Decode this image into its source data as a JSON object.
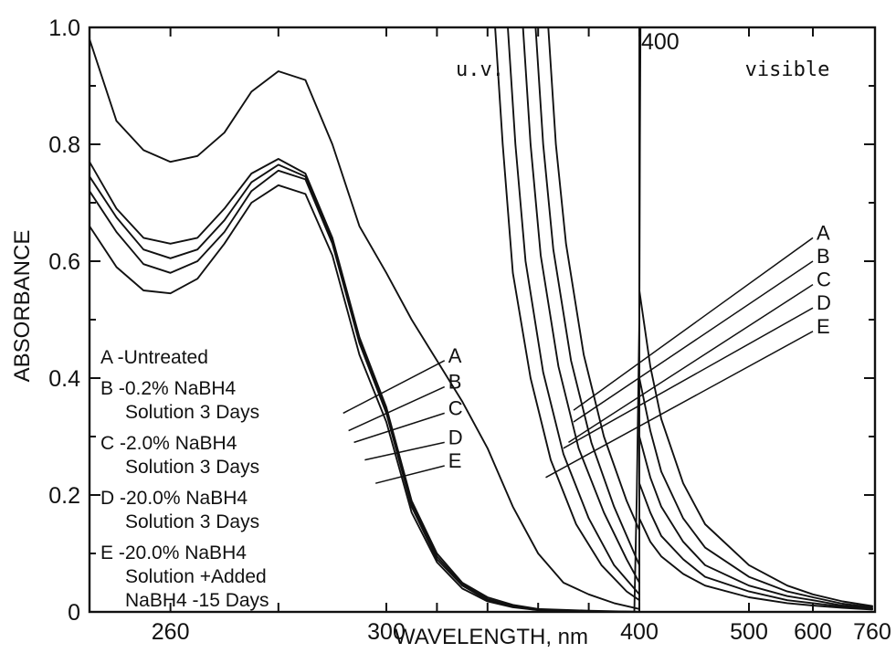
{
  "chart_data": {
    "type": "line",
    "title": "",
    "xlabel": "WAVELENGTH, nm",
    "ylabel": "ABSORBANCE",
    "ylim": [
      0,
      1.0
    ],
    "x_axis_note": "segmented wavelength axis: 245-400 nm (u.v.) then compressed 400-760 nm (visible)",
    "x_segments": [
      {
        "from": 245,
        "to": 300
      },
      {
        "from": 300,
        "to": 400
      },
      {
        "from": 400,
        "to": 500
      },
      {
        "from": 500,
        "to": 600
      },
      {
        "from": 600,
        "to": 760
      }
    ],
    "y_ticks": [
      {
        "value": 0,
        "label": "0"
      },
      {
        "value": 0.2,
        "label": "0.2"
      },
      {
        "value": 0.4,
        "label": "0.4"
      },
      {
        "value": 0.6,
        "label": "0.6"
      },
      {
        "value": 0.8,
        "label": "0.8"
      },
      {
        "value": 1.0,
        "label": "1.0"
      }
    ],
    "x_tick_labels": [
      {
        "value": 260,
        "label": "260"
      },
      {
        "value": 300,
        "label": "300"
      },
      {
        "value": 400,
        "label": "400"
      },
      {
        "value": 500,
        "label": "500"
      },
      {
        "value": 600,
        "label": "600"
      },
      {
        "value": 760,
        "label": "760"
      }
    ],
    "regions": [
      {
        "label": "u.v.",
        "x": 337,
        "y": 0.93
      },
      {
        "label": "visible",
        "x": 560,
        "y": 0.93
      }
    ],
    "split_marker": {
      "label": "400",
      "x": 400
    },
    "series": [
      {
        "name": "A",
        "uv": [
          [
            245,
            0.98
          ],
          [
            250,
            0.84
          ],
          [
            255,
            0.79
          ],
          [
            260,
            0.77
          ],
          [
            265,
            0.78
          ],
          [
            270,
            0.82
          ],
          [
            275,
            0.89
          ],
          [
            280,
            0.925
          ],
          [
            285,
            0.91
          ],
          [
            290,
            0.8
          ],
          [
            295,
            0.66
          ],
          [
            300,
            0.58
          ],
          [
            310,
            0.5
          ],
          [
            320,
            0.43
          ],
          [
            330,
            0.36
          ],
          [
            340,
            0.28
          ],
          [
            350,
            0.18
          ],
          [
            360,
            0.1
          ],
          [
            370,
            0.05
          ],
          [
            380,
            0.03
          ],
          [
            390,
            0.015
          ],
          [
            400,
            0.005
          ]
        ],
        "uv_steep": [
          [
            343,
            1.0
          ],
          [
            346,
            0.8
          ],
          [
            350,
            0.58
          ],
          [
            357,
            0.4
          ],
          [
            365,
            0.26
          ],
          [
            375,
            0.15
          ],
          [
            385,
            0.08
          ],
          [
            395,
            0.035
          ],
          [
            400,
            0.02
          ]
        ],
        "vis": [
          [
            400,
            0.55
          ],
          [
            410,
            0.42
          ],
          [
            420,
            0.33
          ],
          [
            440,
            0.22
          ],
          [
            460,
            0.15
          ],
          [
            500,
            0.08
          ],
          [
            560,
            0.045
          ],
          [
            600,
            0.03
          ],
          [
            680,
            0.018
          ],
          [
            760,
            0.01
          ]
        ]
      },
      {
        "name": "B",
        "uv": [
          [
            245,
            0.77
          ],
          [
            250,
            0.69
          ],
          [
            255,
            0.64
          ],
          [
            260,
            0.63
          ],
          [
            265,
            0.64
          ],
          [
            270,
            0.69
          ],
          [
            275,
            0.75
          ],
          [
            280,
            0.775
          ],
          [
            285,
            0.75
          ],
          [
            290,
            0.64
          ],
          [
            295,
            0.47
          ],
          [
            300,
            0.35
          ],
          [
            310,
            0.19
          ],
          [
            320,
            0.1
          ],
          [
            330,
            0.05
          ],
          [
            340,
            0.025
          ],
          [
            350,
            0.012
          ],
          [
            360,
            0.005
          ],
          [
            380,
            0.002
          ],
          [
            400,
            0.0
          ]
        ],
        "uv_steep": [
          [
            348,
            1.0
          ],
          [
            351,
            0.8
          ],
          [
            355,
            0.6
          ],
          [
            362,
            0.41
          ],
          [
            370,
            0.27
          ],
          [
            380,
            0.16
          ],
          [
            390,
            0.08
          ],
          [
            400,
            0.03
          ]
        ],
        "vis": [
          [
            400,
            0.4
          ],
          [
            410,
            0.31
          ],
          [
            420,
            0.24
          ],
          [
            440,
            0.16
          ],
          [
            460,
            0.11
          ],
          [
            500,
            0.06
          ],
          [
            560,
            0.035
          ],
          [
            600,
            0.025
          ],
          [
            680,
            0.014
          ],
          [
            760,
            0.008
          ]
        ]
      },
      {
        "name": "C",
        "uv": [
          [
            245,
            0.745
          ],
          [
            250,
            0.675
          ],
          [
            255,
            0.62
          ],
          [
            260,
            0.605
          ],
          [
            265,
            0.62
          ],
          [
            270,
            0.67
          ],
          [
            275,
            0.735
          ],
          [
            280,
            0.765
          ],
          [
            285,
            0.745
          ],
          [
            290,
            0.635
          ],
          [
            295,
            0.465
          ],
          [
            300,
            0.345
          ],
          [
            310,
            0.185
          ],
          [
            320,
            0.095
          ],
          [
            330,
            0.047
          ],
          [
            340,
            0.022
          ],
          [
            350,
            0.01
          ],
          [
            360,
            0.004
          ],
          [
            380,
            0.001
          ],
          [
            400,
            0.0
          ]
        ],
        "uv_steep": [
          [
            354,
            1.0
          ],
          [
            357,
            0.8
          ],
          [
            361,
            0.61
          ],
          [
            368,
            0.42
          ],
          [
            376,
            0.28
          ],
          [
            386,
            0.17
          ],
          [
            395,
            0.09
          ],
          [
            400,
            0.05
          ]
        ],
        "vis": [
          [
            400,
            0.3
          ],
          [
            410,
            0.23
          ],
          [
            420,
            0.18
          ],
          [
            440,
            0.12
          ],
          [
            460,
            0.08
          ],
          [
            500,
            0.045
          ],
          [
            560,
            0.027
          ],
          [
            600,
            0.02
          ],
          [
            680,
            0.011
          ],
          [
            760,
            0.006
          ]
        ]
      },
      {
        "name": "D",
        "uv": [
          [
            245,
            0.72
          ],
          [
            250,
            0.65
          ],
          [
            255,
            0.595
          ],
          [
            260,
            0.58
          ],
          [
            265,
            0.6
          ],
          [
            270,
            0.65
          ],
          [
            275,
            0.72
          ],
          [
            280,
            0.755
          ],
          [
            285,
            0.74
          ],
          [
            290,
            0.63
          ],
          [
            295,
            0.46
          ],
          [
            300,
            0.34
          ],
          [
            310,
            0.18
          ],
          [
            320,
            0.09
          ],
          [
            330,
            0.045
          ],
          [
            340,
            0.02
          ],
          [
            350,
            0.009
          ],
          [
            360,
            0.003
          ],
          [
            380,
            0.001
          ],
          [
            400,
            0.0
          ]
        ],
        "uv_steep": [
          [
            359,
            1.0
          ],
          [
            362,
            0.8
          ],
          [
            366,
            0.62
          ],
          [
            373,
            0.43
          ],
          [
            381,
            0.29
          ],
          [
            390,
            0.18
          ],
          [
            398,
            0.1
          ],
          [
            400,
            0.08
          ]
        ],
        "vis": [
          [
            400,
            0.22
          ],
          [
            410,
            0.17
          ],
          [
            420,
            0.13
          ],
          [
            440,
            0.09
          ],
          [
            460,
            0.06
          ],
          [
            500,
            0.035
          ],
          [
            560,
            0.02
          ],
          [
            600,
            0.015
          ],
          [
            680,
            0.009
          ],
          [
            760,
            0.005
          ]
        ]
      },
      {
        "name": "E",
        "uv": [
          [
            245,
            0.66
          ],
          [
            250,
            0.59
          ],
          [
            255,
            0.55
          ],
          [
            260,
            0.545
          ],
          [
            265,
            0.57
          ],
          [
            270,
            0.63
          ],
          [
            275,
            0.7
          ],
          [
            280,
            0.73
          ],
          [
            285,
            0.715
          ],
          [
            290,
            0.61
          ],
          [
            295,
            0.44
          ],
          [
            300,
            0.325
          ],
          [
            310,
            0.17
          ],
          [
            320,
            0.085
          ],
          [
            330,
            0.04
          ],
          [
            340,
            0.018
          ],
          [
            350,
            0.008
          ],
          [
            360,
            0.003
          ],
          [
            380,
            0.001
          ],
          [
            400,
            0.0
          ]
        ],
        "uv_steep": [
          [
            364,
            1.0
          ],
          [
            367,
            0.8
          ],
          [
            371,
            0.63
          ],
          [
            378,
            0.44
          ],
          [
            386,
            0.3
          ],
          [
            395,
            0.19
          ],
          [
            400,
            0.14
          ]
        ],
        "vis": [
          [
            400,
            0.16
          ],
          [
            410,
            0.12
          ],
          [
            420,
            0.095
          ],
          [
            440,
            0.065
          ],
          [
            460,
            0.045
          ],
          [
            500,
            0.025
          ],
          [
            560,
            0.015
          ],
          [
            600,
            0.011
          ],
          [
            680,
            0.007
          ],
          [
            760,
            0.004
          ]
        ]
      }
    ],
    "steep_split_curve": [
      [
        398,
        0.0
      ],
      [
        399,
        0.2
      ],
      [
        400,
        0.5
      ],
      [
        400.5,
        0.8
      ],
      [
        401,
        1.0
      ]
    ],
    "legend": {
      "placement": "left-middle",
      "entries": [
        [
          "A -Untreated"
        ],
        [
          "B -0.2% NaBH4",
          "Solution 3 Days"
        ],
        [
          "C -2.0% NaBH4",
          "Solution 3 Days"
        ],
        [
          "D -20.0% NaBH4",
          "Solution 3 Days"
        ],
        [
          "E -20.0% NaBH4",
          "Solution +Added",
          "NaBH4 -15 Days"
        ]
      ]
    },
    "leader_groups": [
      {
        "labels": [
          "A",
          "B",
          "C",
          "D",
          "E"
        ],
        "from": [
          [
            292,
            0.34
          ],
          [
            293,
            0.31
          ],
          [
            294,
            0.29
          ],
          [
            296,
            0.26
          ],
          [
            298,
            0.22
          ]
        ],
        "to": [
          [
            323,
            0.43
          ],
          [
            323,
            0.385
          ],
          [
            323,
            0.34
          ],
          [
            323,
            0.29
          ],
          [
            323,
            0.25
          ]
        ]
      },
      {
        "labels": [
          "A",
          "B",
          "C",
          "D",
          "E"
        ],
        "from": [
          [
            374,
            0.345
          ],
          [
            374,
            0.325
          ],
          [
            372,
            0.29
          ],
          [
            370,
            0.28
          ],
          [
            363,
            0.23
          ]
        ],
        "to": [
          [
            600,
            0.64
          ],
          [
            600,
            0.6
          ],
          [
            600,
            0.56
          ],
          [
            600,
            0.52
          ],
          [
            600,
            0.48
          ]
        ]
      }
    ],
    "grid": false
  }
}
